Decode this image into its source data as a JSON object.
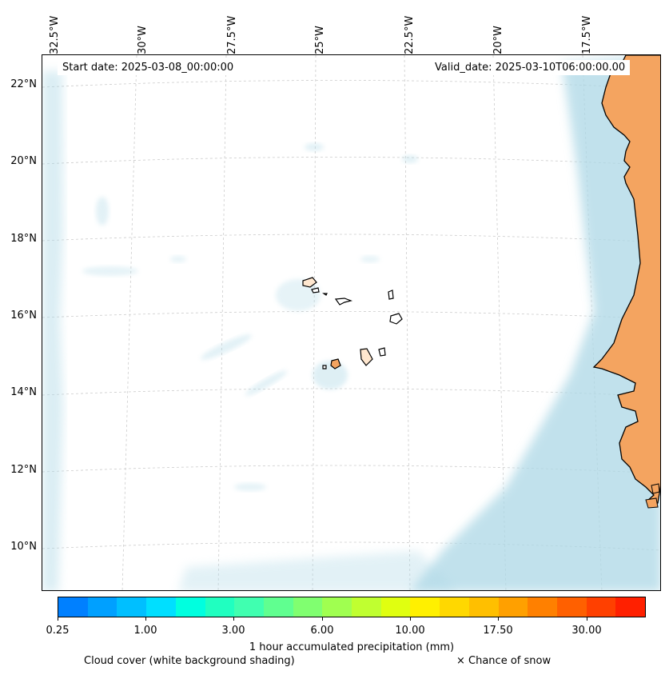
{
  "map": {
    "start_date": "Start date: 2025-03-08_00:00:00",
    "valid_date": "Valid_date: 2025-03-10T06:00:00.00",
    "longitude_labels": [
      "32.5°W",
      "30°W",
      "27.5°W",
      "25°W",
      "22.5°W",
      "20°W",
      "17.5°W"
    ],
    "latitude_labels": [
      "22°N",
      "20°N",
      "18°N",
      "16°N",
      "14°N",
      "12°N",
      "10°N"
    ],
    "colors": {
      "cloud": "#add8e6",
      "land_precip": "#f4a460",
      "coastline": "#000000",
      "grid": "#cccccc"
    }
  },
  "colorbar": {
    "title": "1 hour accumulated precipitation (mm)",
    "tick_labels": [
      "0.25",
      "1.00",
      "3.00",
      "6.00",
      "10.00",
      "17.50",
      "30.00"
    ],
    "colors": [
      "#0080ff",
      "#00a0ff",
      "#00bfff",
      "#00dfff",
      "#00ffdf",
      "#20ffc0",
      "#40ffb0",
      "#60ff90",
      "#80ff70",
      "#a0ff50",
      "#c0ff30",
      "#e0ff10",
      "#fff000",
      "#ffd800",
      "#ffbf00",
      "#ffa000",
      "#ff8000",
      "#ff6000",
      "#ff4000",
      "#ff2000"
    ]
  },
  "legend": {
    "cloud_cover": "Cloud cover (white background shading)",
    "snow": "× Chance of snow"
  }
}
